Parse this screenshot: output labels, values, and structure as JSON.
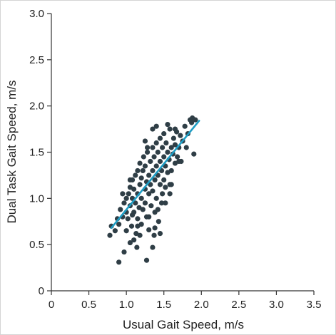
{
  "chart_data": {
    "type": "scatter",
    "title": "",
    "xlabel": "Usual Gait Speed, m/s",
    "ylabel": "Dual Task Gait Speed, m/s",
    "xlim": [
      0,
      3.5
    ],
    "ylim": [
      0,
      3.0
    ],
    "x_ticks": [
      "0",
      "0.5",
      "1.0",
      "1.5",
      "2.0",
      "2.5",
      "3.0",
      "3.5"
    ],
    "y_ticks": [
      "0",
      "0.5",
      "1.0",
      "1.5",
      "2.0",
      "2.5",
      "3.0"
    ],
    "grid": false,
    "legend": "none",
    "point_color": "#2f3e46",
    "line_color": "#1e9dc4",
    "fit_line": {
      "x": [
        0.8,
        1.97
      ],
      "y": [
        0.68,
        1.84
      ]
    },
    "series": [
      {
        "values_xy": [
          [
            0.9,
            0.31
          ],
          [
            1.05,
            0.52
          ],
          [
            1.14,
            0.47
          ],
          [
            1.27,
            0.33
          ],
          [
            1.35,
            0.47
          ],
          [
            0.97,
            0.42
          ],
          [
            1.37,
            0.6
          ],
          [
            1.45,
            0.62
          ],
          [
            0.78,
            0.6
          ],
          [
            0.8,
            0.7
          ],
          [
            0.85,
            0.65
          ],
          [
            0.9,
            0.72
          ],
          [
            0.92,
            0.88
          ],
          [
            0.95,
            0.8
          ],
          [
            0.97,
            0.95
          ],
          [
            1.0,
            1.0
          ],
          [
            1.0,
            0.85
          ],
          [
            1.02,
            0.78
          ],
          [
            1.03,
            1.05
          ],
          [
            1.05,
            0.92
          ],
          [
            1.05,
            1.12
          ],
          [
            1.07,
            0.7
          ],
          [
            1.08,
            1.0
          ],
          [
            1.08,
            1.2
          ],
          [
            1.1,
            0.85
          ],
          [
            1.1,
            1.1
          ],
          [
            1.12,
            0.95
          ],
          [
            1.12,
            1.25
          ],
          [
            1.13,
            0.62
          ],
          [
            1.15,
            1.05
          ],
          [
            1.15,
            0.78
          ],
          [
            1.15,
            1.3
          ],
          [
            1.17,
            0.9
          ],
          [
            1.18,
            1.15
          ],
          [
            1.18,
            1.38
          ],
          [
            1.2,
            1.0
          ],
          [
            1.2,
            0.72
          ],
          [
            1.2,
            1.22
          ],
          [
            1.22,
            1.3
          ],
          [
            1.22,
            0.88
          ],
          [
            1.23,
            1.45
          ],
          [
            1.25,
            1.1
          ],
          [
            1.25,
            0.95
          ],
          [
            1.25,
            1.35
          ],
          [
            1.27,
            1.18
          ],
          [
            1.27,
            0.8
          ],
          [
            1.28,
            1.5
          ],
          [
            1.3,
            1.25
          ],
          [
            1.3,
            1.05
          ],
          [
            1.3,
            0.66
          ],
          [
            1.32,
            1.4
          ],
          [
            1.32,
            1.15
          ],
          [
            1.33,
            0.92
          ],
          [
            1.35,
            1.3
          ],
          [
            1.35,
            1.55
          ],
          [
            1.35,
            1.08
          ],
          [
            1.37,
            1.45
          ],
          [
            1.38,
            1.2
          ],
          [
            1.38,
            0.85
          ],
          [
            1.4,
            1.35
          ],
          [
            1.4,
            1.6
          ],
          [
            1.4,
            1.0
          ],
          [
            1.42,
            1.25
          ],
          [
            1.42,
            1.5
          ],
          [
            1.43,
            0.75
          ],
          [
            1.45,
            1.4
          ],
          [
            1.45,
            1.15
          ],
          [
            1.45,
            1.65
          ],
          [
            1.47,
            1.3
          ],
          [
            1.48,
            1.55
          ],
          [
            1.48,
            1.05
          ],
          [
            1.5,
            1.45
          ],
          [
            1.5,
            1.7
          ],
          [
            1.5,
            1.2
          ],
          [
            1.52,
            1.35
          ],
          [
            1.52,
            0.95
          ],
          [
            1.53,
            1.6
          ],
          [
            1.55,
            1.5
          ],
          [
            1.55,
            1.28
          ],
          [
            1.57,
            1.42
          ],
          [
            1.58,
            1.75
          ],
          [
            1.58,
            1.15
          ],
          [
            1.6,
            1.55
          ],
          [
            1.6,
            1.3
          ],
          [
            1.62,
            1.48
          ],
          [
            1.63,
            1.65
          ],
          [
            1.65,
            1.38
          ],
          [
            1.65,
            1.58
          ],
          [
            1.67,
            1.72
          ],
          [
            1.68,
            1.45
          ],
          [
            1.7,
            1.55
          ],
          [
            1.72,
            1.68
          ],
          [
            1.73,
            1.4
          ],
          [
            1.75,
            1.62
          ],
          [
            1.78,
            1.78
          ],
          [
            1.8,
            1.55
          ],
          [
            1.82,
            1.7
          ],
          [
            1.85,
            1.85
          ],
          [
            1.87,
            1.82
          ],
          [
            1.88,
            1.87
          ],
          [
            1.92,
            1.85
          ],
          [
            1.9,
            1.48
          ],
          [
            1.25,
            1.62
          ],
          [
            1.18,
            0.6
          ],
          [
            1.1,
            0.55
          ],
          [
            1.38,
            0.68
          ],
          [
            1.52,
            1.12
          ],
          [
            1.6,
            1.15
          ],
          [
            1.42,
            0.88
          ],
          [
            1.3,
            0.8
          ],
          [
            1.0,
            0.65
          ],
          [
            0.88,
            0.78
          ],
          [
            1.08,
            0.82
          ],
          [
            1.15,
            0.7
          ],
          [
            1.58,
            1.05
          ],
          [
            1.47,
            0.95
          ],
          [
            1.35,
            1.75
          ],
          [
            1.4,
            1.78
          ],
          [
            1.28,
            1.55
          ],
          [
            1.05,
            1.2
          ],
          [
            0.95,
            1.05
          ],
          [
            1.55,
            1.8
          ],
          [
            1.65,
            1.75
          ],
          [
            1.7,
            1.4
          ]
        ]
      }
    ]
  }
}
